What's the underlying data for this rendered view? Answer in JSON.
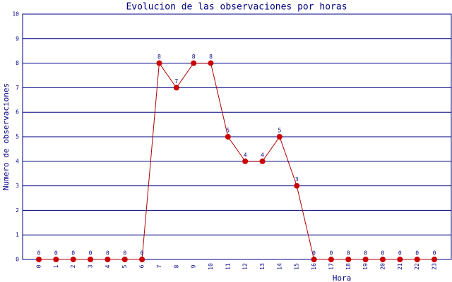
{
  "chart_data": {
    "type": "line",
    "title": "Evolucion de las observaciones por horas",
    "x_label": "Hora",
    "y_label": "Numero de observaciones",
    "categories": [
      "0",
      "1",
      "2",
      "3",
      "4",
      "5",
      "6",
      "7",
      "8",
      "9",
      "10",
      "11",
      "12",
      "13",
      "14",
      "15",
      "16",
      "17",
      "18",
      "19",
      "20",
      "21",
      "22",
      "23"
    ],
    "values": [
      0,
      0,
      0,
      0,
      0,
      0,
      0,
      8,
      7,
      8,
      8,
      5,
      4,
      4,
      5,
      3,
      0,
      0,
      0,
      0,
      0,
      0,
      0,
      0
    ],
    "color": "#b00000",
    "marker_color": "#cc0000",
    "ylim": [
      0,
      10
    ],
    "yticks": [
      0,
      1,
      2,
      3,
      4,
      5,
      6,
      7,
      8,
      9,
      10
    ],
    "grid": true
  }
}
